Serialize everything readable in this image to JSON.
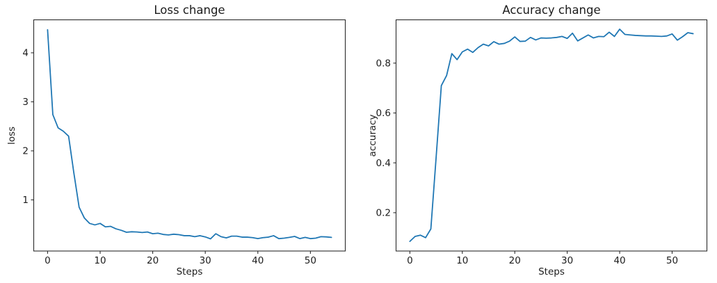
{
  "page": {
    "background": "#ffffff"
  },
  "style": {
    "line_color": "#1f77b4",
    "spine_color": "#2b2b2b",
    "text_color": "#1c1c1c"
  },
  "chart_data": [
    {
      "type": "line",
      "title": "Loss change",
      "xlabel": "Steps",
      "ylabel": "loss",
      "line_color": "#1f77b4",
      "grid": false,
      "legend": "none",
      "xlim": [
        -2.7,
        56.7
      ],
      "ylim": [
        -0.05,
        4.68
      ],
      "xticks": [
        0,
        10,
        20,
        30,
        40,
        50
      ],
      "yticks": [
        1,
        2,
        3,
        4
      ],
      "x": [
        0,
        1,
        2,
        3,
        4,
        5,
        6,
        7,
        8,
        9,
        10,
        11,
        12,
        13,
        14,
        15,
        16,
        17,
        18,
        19,
        20,
        21,
        22,
        23,
        24,
        25,
        26,
        27,
        28,
        29,
        30,
        31,
        32,
        33,
        34,
        35,
        36,
        37,
        38,
        39,
        40,
        41,
        42,
        43,
        44,
        45,
        46,
        47,
        48,
        49,
        50,
        51,
        52,
        53,
        54
      ],
      "y": [
        4.47,
        2.74,
        2.47,
        2.4,
        2.3,
        1.55,
        0.85,
        0.63,
        0.52,
        0.49,
        0.52,
        0.45,
        0.46,
        0.41,
        0.38,
        0.34,
        0.35,
        0.345,
        0.335,
        0.345,
        0.31,
        0.32,
        0.295,
        0.285,
        0.3,
        0.29,
        0.27,
        0.27,
        0.25,
        0.27,
        0.245,
        0.205,
        0.31,
        0.25,
        0.225,
        0.26,
        0.26,
        0.24,
        0.24,
        0.23,
        0.21,
        0.23,
        0.24,
        0.27,
        0.21,
        0.22,
        0.235,
        0.255,
        0.21,
        0.235,
        0.21,
        0.22,
        0.25,
        0.245,
        0.235
      ]
    },
    {
      "type": "line",
      "title": "Accuracy change",
      "xlabel": "Steps",
      "ylabel": "accuracy",
      "line_color": "#1f77b4",
      "grid": false,
      "legend": "none",
      "xlim": [
        -2.7,
        56.7
      ],
      "ylim": [
        0.045,
        0.975
      ],
      "xticks": [
        0,
        10,
        20,
        30,
        40,
        50
      ],
      "yticks": [
        0.2,
        0.4,
        0.6,
        0.8
      ],
      "x": [
        0,
        1,
        2,
        3,
        4,
        5,
        6,
        7,
        8,
        9,
        10,
        11,
        12,
        13,
        14,
        15,
        16,
        17,
        18,
        19,
        20,
        21,
        22,
        23,
        24,
        25,
        26,
        27,
        28,
        29,
        30,
        31,
        32,
        33,
        34,
        35,
        36,
        37,
        38,
        39,
        40,
        41,
        42,
        43,
        44,
        45,
        46,
        47,
        48,
        49,
        50,
        51,
        52,
        53,
        54
      ],
      "y": [
        0.085,
        0.105,
        0.11,
        0.1,
        0.135,
        0.42,
        0.71,
        0.75,
        0.838,
        0.814,
        0.845,
        0.856,
        0.843,
        0.862,
        0.876,
        0.869,
        0.886,
        0.876,
        0.879,
        0.888,
        0.905,
        0.887,
        0.888,
        0.903,
        0.893,
        0.901,
        0.9,
        0.901,
        0.903,
        0.907,
        0.899,
        0.92,
        0.889,
        0.901,
        0.913,
        0.901,
        0.907,
        0.906,
        0.924,
        0.907,
        0.936,
        0.915,
        0.913,
        0.911,
        0.91,
        0.909,
        0.909,
        0.908,
        0.907,
        0.909,
        0.917,
        0.892,
        0.906,
        0.922,
        0.918
      ]
    }
  ]
}
